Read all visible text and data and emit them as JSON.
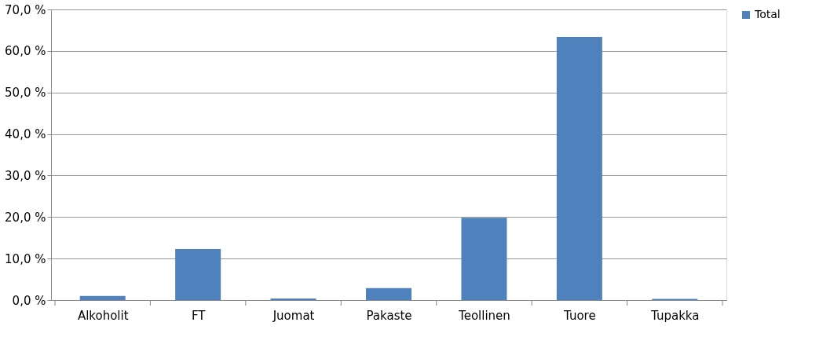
{
  "chart_data": {
    "type": "bar",
    "categories": [
      "Alkoholit",
      "FT",
      "Juomat",
      "Pakaste",
      "Teollinen",
      "Tuore",
      "Tupakka"
    ],
    "series": [
      {
        "name": "Total",
        "color": "#4f81bd",
        "values": [
          1.0,
          12.3,
          0.4,
          2.9,
          19.8,
          63.4,
          0.3
        ]
      }
    ],
    "ylim": [
      0,
      70
    ],
    "yticks": [
      {
        "value": 0,
        "label": "0,0 %"
      },
      {
        "value": 10,
        "label": "10,0 %"
      },
      {
        "value": 20,
        "label": "20,0 %"
      },
      {
        "value": 30,
        "label": "30,0 %"
      },
      {
        "value": 40,
        "label": "40,0 %"
      },
      {
        "value": 50,
        "label": "50,0 %"
      },
      {
        "value": 60,
        "label": "60,0 %"
      },
      {
        "value": 70,
        "label": "70,0 %"
      }
    ],
    "grid": "y",
    "legend": "right"
  }
}
